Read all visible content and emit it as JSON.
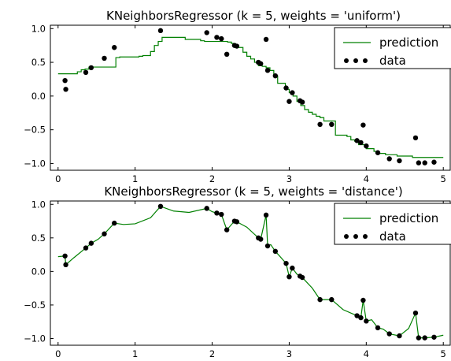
{
  "chart_data": [
    {
      "type": "line",
      "title": "KNeighborsRegressor (k = 5, weights = 'uniform')",
      "xlabel": "",
      "ylabel": "",
      "xlim": [
        -0.1,
        5.1
      ],
      "ylim": [
        -1.1,
        1.05
      ],
      "xticks": [
        0,
        1,
        2,
        3,
        4,
        5
      ],
      "yticks": [
        1.0,
        0.5,
        0.0,
        -0.5,
        -1.0
      ],
      "xtick_labels": [
        "0",
        "1",
        "2",
        "3",
        "4",
        "5"
      ],
      "ytick_labels": [
        "1.0",
        "0.5",
        "0.0",
        "−0.5",
        "−1.0"
      ],
      "legend": {
        "placement": "top-right",
        "entries": [
          "prediction",
          "data"
        ]
      },
      "series": [
        {
          "name": "prediction",
          "kind": "step-line",
          "color": "#008000",
          "x": [
            0.0,
            0.05,
            0.1,
            0.15,
            0.2,
            0.25,
            0.3,
            0.35,
            0.4,
            0.45,
            0.5,
            0.55,
            0.6,
            0.65,
            0.7,
            0.75,
            0.8,
            0.85,
            0.9,
            0.95,
            1.0,
            1.05,
            1.1,
            1.15,
            1.2,
            1.25,
            1.3,
            1.35,
            1.4,
            1.45,
            1.5,
            1.55,
            1.6,
            1.65,
            1.7,
            1.75,
            1.8,
            1.85,
            1.9,
            1.95,
            2.0,
            2.05,
            2.1,
            2.15,
            2.2,
            2.25,
            2.3,
            2.35,
            2.4,
            2.45,
            2.5,
            2.55,
            2.6,
            2.65,
            2.7,
            2.75,
            2.8,
            2.85,
            2.9,
            2.95,
            3.0,
            3.05,
            3.1,
            3.15,
            3.2,
            3.25,
            3.3,
            3.35,
            3.4,
            3.45,
            3.5,
            3.55,
            3.6,
            3.65,
            3.7,
            3.75,
            3.8,
            3.85,
            3.9,
            3.95,
            4.0,
            4.05,
            4.1,
            4.15,
            4.2,
            4.25,
            4.3,
            4.35,
            4.4,
            4.45,
            4.5,
            4.55,
            4.6,
            4.65,
            4.7,
            4.75,
            4.8,
            4.85,
            4.9,
            4.95,
            5.0
          ],
          "y": [
            0.33,
            0.33,
            0.33,
            0.33,
            0.33,
            0.36,
            0.39,
            0.4,
            0.43,
            0.43,
            0.43,
            0.43,
            0.43,
            0.43,
            0.43,
            0.57,
            0.58,
            0.58,
            0.58,
            0.58,
            0.58,
            0.59,
            0.6,
            0.6,
            0.66,
            0.75,
            0.81,
            0.87,
            0.87,
            0.87,
            0.87,
            0.87,
            0.87,
            0.84,
            0.84,
            0.84,
            0.84,
            0.82,
            0.81,
            0.81,
            0.81,
            0.81,
            0.81,
            0.81,
            0.8,
            0.78,
            0.72,
            0.72,
            0.65,
            0.59,
            0.55,
            0.5,
            0.45,
            0.44,
            0.42,
            0.38,
            0.3,
            0.19,
            0.19,
            0.1,
            0.05,
            0.0,
            -0.08,
            -0.14,
            -0.2,
            -0.24,
            -0.27,
            -0.3,
            -0.32,
            -0.37,
            -0.37,
            -0.37,
            -0.58,
            -0.58,
            -0.58,
            -0.6,
            -0.65,
            -0.67,
            -0.72,
            -0.72,
            -0.78,
            -0.78,
            -0.82,
            -0.85,
            -0.85,
            -0.87,
            -0.87,
            -0.87,
            -0.89,
            -0.89,
            -0.89,
            -0.89,
            -0.91,
            -0.91,
            -0.91,
            -0.91,
            -0.91,
            -0.91,
            -0.91,
            -0.91,
            -0.91
          ]
        },
        {
          "name": "data",
          "kind": "scatter",
          "color": "#000000",
          "x": [
            0.09,
            0.1,
            0.36,
            0.43,
            0.6,
            0.73,
            1.33,
            1.93,
            2.06,
            2.12,
            2.19,
            2.29,
            2.32,
            2.6,
            2.63,
            2.7,
            2.72,
            2.82,
            2.96,
            3.0,
            3.04,
            3.14,
            3.17,
            3.4,
            3.55,
            3.88,
            3.93,
            3.96,
            4.0,
            4.15,
            4.3,
            4.43,
            4.64,
            4.68,
            4.76,
            4.88
          ],
          "y": [
            0.23,
            0.1,
            0.35,
            0.42,
            0.56,
            0.72,
            0.97,
            0.94,
            0.87,
            0.85,
            0.62,
            0.75,
            0.74,
            0.5,
            0.48,
            0.84,
            0.38,
            0.3,
            0.12,
            -0.08,
            0.05,
            -0.07,
            -0.09,
            -0.42,
            -0.42,
            -0.66,
            -0.69,
            -0.43,
            -0.74,
            -0.84,
            -0.93,
            -0.96,
            -0.62,
            -0.99,
            -0.99,
            -0.98
          ]
        }
      ]
    },
    {
      "type": "line",
      "title": "KNeighborsRegressor (k = 5, weights = 'distance')",
      "xlabel": "",
      "ylabel": "",
      "xlim": [
        -0.1,
        5.1
      ],
      "ylim": [
        -1.1,
        1.05
      ],
      "xticks": [
        0,
        1,
        2,
        3,
        4,
        5
      ],
      "yticks": [
        1.0,
        0.5,
        0.0,
        -0.5,
        -1.0
      ],
      "xtick_labels": [
        "0",
        "1",
        "2",
        "3",
        "4",
        "5"
      ],
      "ytick_labels": [
        "1.0",
        "0.5",
        "0.0",
        "−0.5",
        "−1.0"
      ],
      "legend": {
        "placement": "top-right",
        "entries": [
          "prediction",
          "data"
        ]
      },
      "series": [
        {
          "name": "prediction",
          "kind": "line",
          "color": "#008000",
          "x": [
            0.0,
            0.09,
            0.1,
            0.2,
            0.36,
            0.43,
            0.52,
            0.6,
            0.73,
            0.85,
            1.0,
            1.2,
            1.33,
            1.5,
            1.7,
            1.93,
            2.0,
            2.06,
            2.12,
            2.19,
            2.29,
            2.32,
            2.45,
            2.6,
            2.63,
            2.7,
            2.72,
            2.76,
            2.82,
            2.96,
            3.0,
            3.04,
            3.1,
            3.14,
            3.17,
            3.3,
            3.4,
            3.55,
            3.7,
            3.88,
            3.93,
            3.96,
            4.0,
            4.07,
            4.15,
            4.22,
            4.3,
            4.43,
            4.55,
            4.64,
            4.68,
            4.76,
            4.88,
            5.0
          ],
          "y": [
            0.22,
            0.23,
            0.1,
            0.2,
            0.35,
            0.42,
            0.48,
            0.56,
            0.72,
            0.7,
            0.71,
            0.8,
            0.97,
            0.9,
            0.88,
            0.94,
            0.89,
            0.87,
            0.85,
            0.62,
            0.75,
            0.74,
            0.66,
            0.5,
            0.48,
            0.84,
            0.38,
            0.4,
            0.3,
            0.12,
            -0.08,
            0.05,
            -0.04,
            -0.07,
            -0.09,
            -0.25,
            -0.42,
            -0.42,
            -0.57,
            -0.66,
            -0.69,
            -0.43,
            -0.74,
            -0.72,
            -0.84,
            -0.86,
            -0.93,
            -0.96,
            -0.85,
            -0.62,
            -0.99,
            -0.99,
            -0.98,
            -0.95
          ]
        },
        {
          "name": "data",
          "kind": "scatter",
          "color": "#000000",
          "x": [
            0.09,
            0.1,
            0.36,
            0.43,
            0.6,
            0.73,
            1.33,
            1.93,
            2.06,
            2.12,
            2.19,
            2.29,
            2.32,
            2.6,
            2.63,
            2.7,
            2.72,
            2.82,
            2.96,
            3.0,
            3.04,
            3.14,
            3.17,
            3.4,
            3.55,
            3.88,
            3.93,
            3.96,
            4.0,
            4.15,
            4.3,
            4.43,
            4.64,
            4.68,
            4.76,
            4.88
          ],
          "y": [
            0.23,
            0.1,
            0.35,
            0.42,
            0.56,
            0.72,
            0.97,
            0.94,
            0.87,
            0.85,
            0.62,
            0.75,
            0.74,
            0.5,
            0.48,
            0.84,
            0.38,
            0.3,
            0.12,
            -0.08,
            0.05,
            -0.07,
            -0.09,
            -0.42,
            -0.42,
            -0.66,
            -0.69,
            -0.43,
            -0.74,
            -0.84,
            -0.93,
            -0.96,
            -0.62,
            -0.99,
            -0.99,
            -0.98
          ]
        }
      ]
    }
  ]
}
